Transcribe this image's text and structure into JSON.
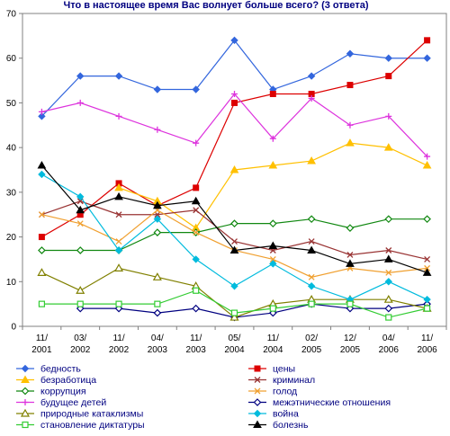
{
  "chart_data": {
    "type": "line",
    "title": "Что в настоящее время Вас волнует больше всего? (3 ответа)",
    "xlabel": "",
    "ylabel": "",
    "ylim": [
      0,
      70
    ],
    "yticks": [
      0,
      10,
      20,
      30,
      40,
      50,
      60,
      70
    ],
    "grid": false,
    "legend": "bottom",
    "categories": [
      [
        "11/",
        "2001"
      ],
      [
        "03/",
        "2002"
      ],
      [
        "11/",
        "2002"
      ],
      [
        "04/",
        "2003"
      ],
      [
        "11/",
        "2003"
      ],
      [
        "05/",
        "2004"
      ],
      [
        "11/",
        "2004"
      ],
      [
        "02/",
        "2005"
      ],
      [
        "12/",
        "2005"
      ],
      [
        "04/",
        "2006"
      ],
      [
        "11/",
        "2006"
      ]
    ],
    "series": [
      {
        "name": "бедность",
        "color": "#3366dd",
        "marker": "diamond",
        "values": [
          47,
          56,
          56,
          53,
          53,
          64,
          53,
          56,
          61,
          60,
          60
        ]
      },
      {
        "name": "цены",
        "color": "#dd0000",
        "marker": "square",
        "values": [
          20,
          25,
          32,
          27,
          31,
          50,
          52,
          52,
          54,
          56,
          64
        ]
      },
      {
        "name": "безработица",
        "color": "#ffc000",
        "marker": "triangle",
        "values": [
          null,
          null,
          31,
          28,
          22,
          35,
          36,
          37,
          41,
          40,
          36
        ]
      },
      {
        "name": "криминал",
        "color": "#993333",
        "marker": "x",
        "values": [
          25,
          28,
          25,
          25,
          26,
          19,
          17,
          19,
          16,
          17,
          15
        ]
      },
      {
        "name": "коррупция",
        "color": "#118811",
        "marker": "diamond-open",
        "values": [
          17,
          17,
          17,
          21,
          21,
          23,
          23,
          24,
          22,
          24,
          24
        ]
      },
      {
        "name": "голод",
        "color": "#f0a030",
        "marker": "x",
        "values": [
          25,
          23,
          19,
          26,
          21,
          17,
          15,
          11,
          13,
          12,
          13
        ]
      },
      {
        "name": "будущее детей",
        "color": "#dd33dd",
        "marker": "plus",
        "values": [
          48,
          50,
          47,
          44,
          41,
          52,
          42,
          51,
          45,
          47,
          38
        ]
      },
      {
        "name": "межэтнические отношения",
        "color": "#000080",
        "marker": "diamond-open",
        "values": [
          null,
          4,
          4,
          3,
          4,
          2,
          3,
          5,
          4,
          4,
          5
        ]
      },
      {
        "name": "природные катаклизмы",
        "color": "#808000",
        "marker": "triangle-open",
        "values": [
          12,
          8,
          13,
          11,
          9,
          2,
          5,
          6,
          6,
          6,
          4
        ]
      },
      {
        "name": "война",
        "color": "#00bbdd",
        "marker": "diamond",
        "values": [
          34,
          29,
          17,
          24,
          15,
          9,
          14,
          9,
          6,
          10,
          6
        ]
      },
      {
        "name": "становление диктатуры",
        "color": "#33cc33",
        "marker": "square-open",
        "values": [
          5,
          5,
          5,
          5,
          8,
          3,
          4,
          5,
          5,
          2,
          4
        ]
      },
      {
        "name": "болезнь",
        "color": "#000000",
        "marker": "triangle",
        "values": [
          36,
          26,
          29,
          27,
          28,
          17,
          18,
          17,
          14,
          15,
          12
        ]
      }
    ]
  }
}
